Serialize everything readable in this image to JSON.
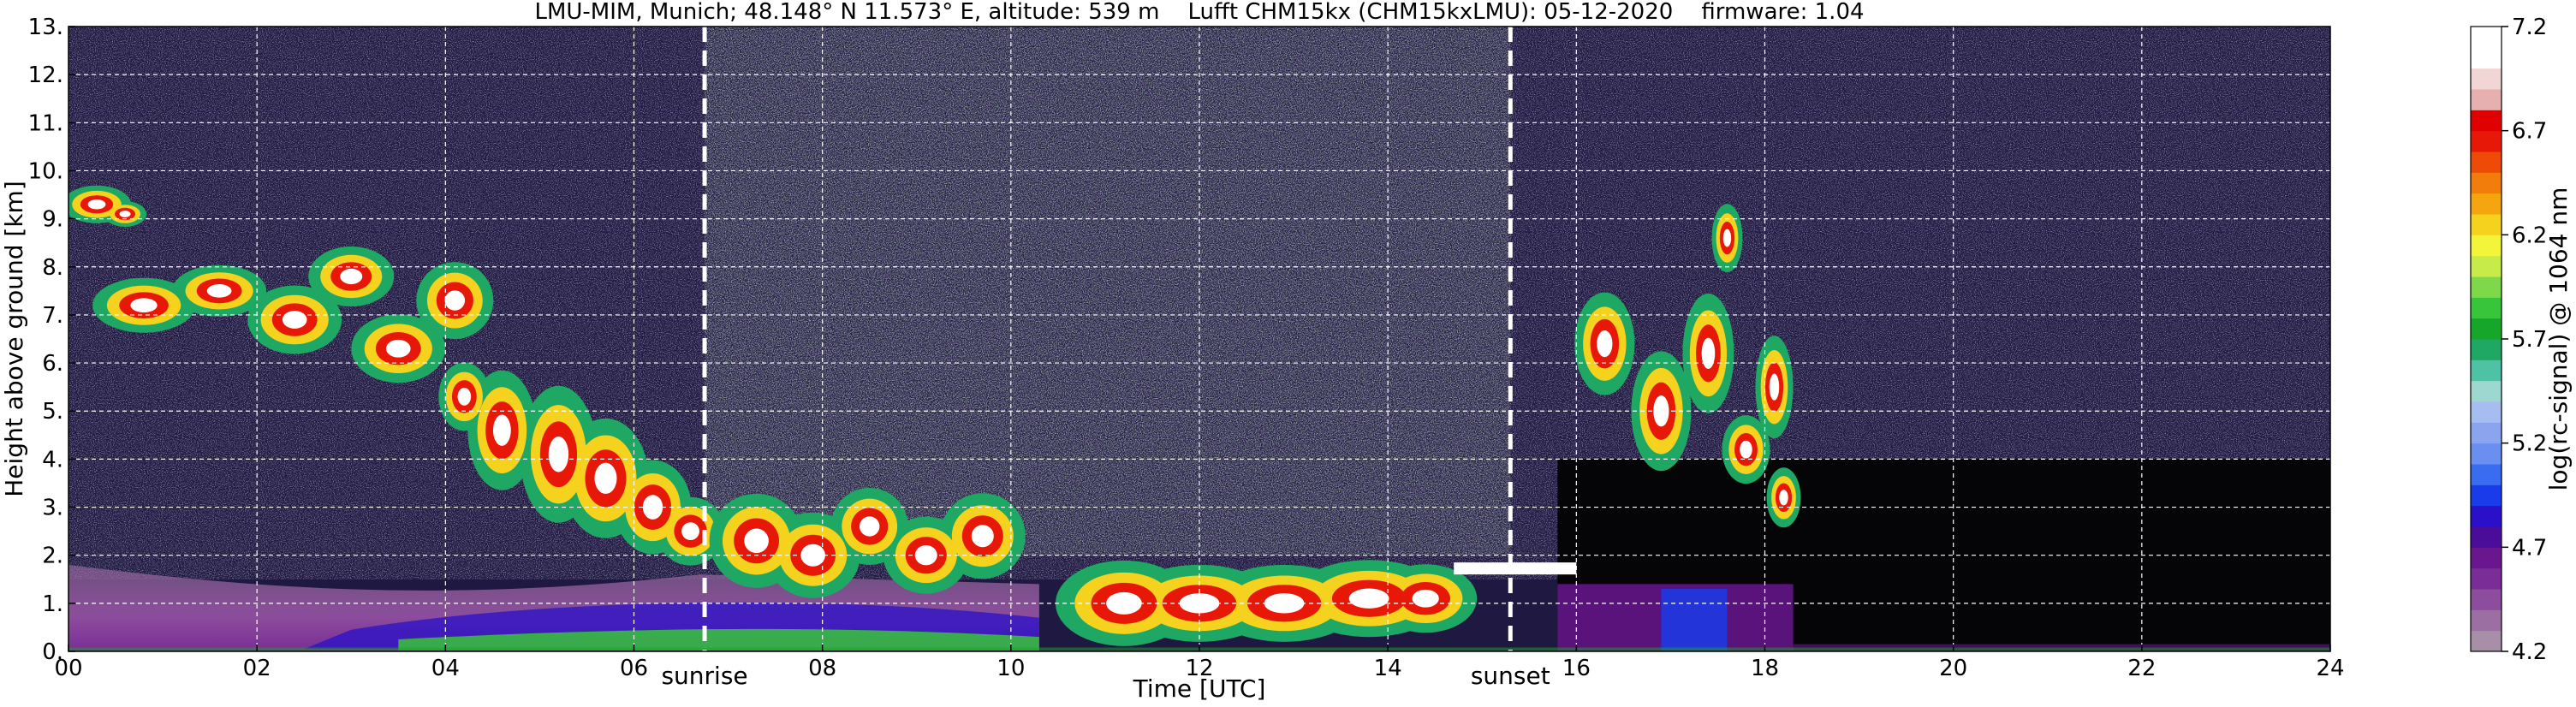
{
  "chart_data": {
    "type": "heatmap",
    "title": "LMU-MIM, Munich; 48.148° N 11.573° E, altitude: 539 m    Lufft CHM15kx (CHM15kxLMU): 05-12-2020    firmware: 1.04",
    "xlabel": "Time [UTC]",
    "ylabel": "Height above ground [km]",
    "xlim": [
      0,
      24
    ],
    "ylim": [
      0,
      13
    ],
    "x_ticks": [
      "00",
      "02",
      "04",
      "06",
      "08",
      "10",
      "12",
      "14",
      "16",
      "18",
      "20",
      "22",
      "24"
    ],
    "y_ticks": [
      "0.",
      "1.",
      "2.",
      "3.",
      "4.",
      "5.",
      "6.",
      "7.",
      "8.",
      "9.",
      "10.",
      "11.",
      "12.",
      "13."
    ],
    "grid": true,
    "annotations": [
      {
        "label": "sunrise",
        "x": 6.75
      },
      {
        "label": "sunset",
        "x": 15.3
      }
    ],
    "colorbar": {
      "label": "log(rc-signal) @ 1064 nm",
      "range": [
        4.2,
        7.2
      ],
      "ticks": [
        "4.2",
        "4.7",
        "5.2",
        "5.7",
        "6.2",
        "6.7",
        "7.2"
      ],
      "colors": [
        "#a88fa8",
        "#9c6fa3",
        "#8c4d9c",
        "#7a2d96",
        "#6a168f",
        "#4a0d9a",
        "#2a10c8",
        "#1a3bea",
        "#3a6cf2",
        "#6b8ff0",
        "#8aa5ee",
        "#a7bcf0",
        "#9ed7d0",
        "#4fc2a5",
        "#1fa864",
        "#16a62a",
        "#38c53a",
        "#7fd84a",
        "#c7ec4a",
        "#f2f53a",
        "#f5d21e",
        "#f5a50d",
        "#f27d0a",
        "#ee4a08",
        "#e81808",
        "#e00000",
        "#e7b0b0",
        "#f2d6d6",
        "#ffffff",
        "#ffffff"
      ]
    },
    "features": [
      {
        "name": "background-noise",
        "x": [
          0,
          24
        ],
        "y": [
          1.5,
          13
        ]
      },
      {
        "name": "daytime-noise",
        "x": [
          6.75,
          15.3
        ],
        "y": [
          2.0,
          13
        ]
      },
      {
        "name": "boundary-layer-aerosol",
        "x": [
          0,
          24
        ],
        "y": [
          0,
          1.8
        ]
      },
      {
        "name": "cloud-early-1",
        "x": [
          0.0,
          0.8
        ],
        "y": [
          8.9,
          9.7
        ]
      },
      {
        "name": "cloud-early-2",
        "x": [
          0.2,
          4.5
        ],
        "y": [
          5.6,
          8.4
        ]
      },
      {
        "name": "cloud-descending",
        "x": [
          4.2,
          6.9
        ],
        "y": [
          1.8,
          7.2
        ]
      },
      {
        "name": "cloud-morning",
        "x": [
          6.9,
          10.2
        ],
        "y": [
          0.9,
          3.5
        ]
      },
      {
        "name": "cloud-midday-low",
        "x": [
          10.7,
          14.8
        ],
        "y": [
          0.1,
          2.2
        ]
      },
      {
        "name": "cloud-evening",
        "x": [
          15.8,
          18.5
        ],
        "y": [
          2.0,
          9.8
        ]
      }
    ]
  }
}
